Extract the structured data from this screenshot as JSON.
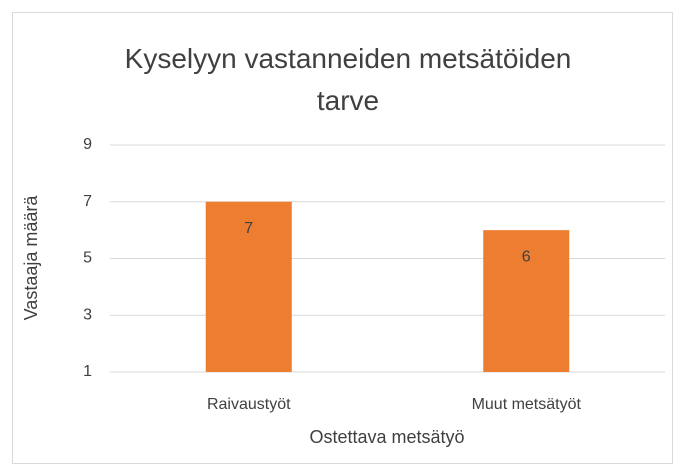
{
  "chart_data": {
    "type": "bar",
    "title": "Kyselyyn vastanneiden metsätöiden tarve",
    "x_label": "Ostettava metsätyö",
    "y_label": "Vastaaja määrä",
    "categories": [
      "Raivaustyöt",
      "Muut metsätyöt"
    ],
    "values": [
      7,
      6
    ],
    "color": "#ed7d31",
    "ylim": [
      1,
      9
    ],
    "yticks": [
      1,
      3,
      5,
      7,
      9
    ],
    "grid": true
  }
}
